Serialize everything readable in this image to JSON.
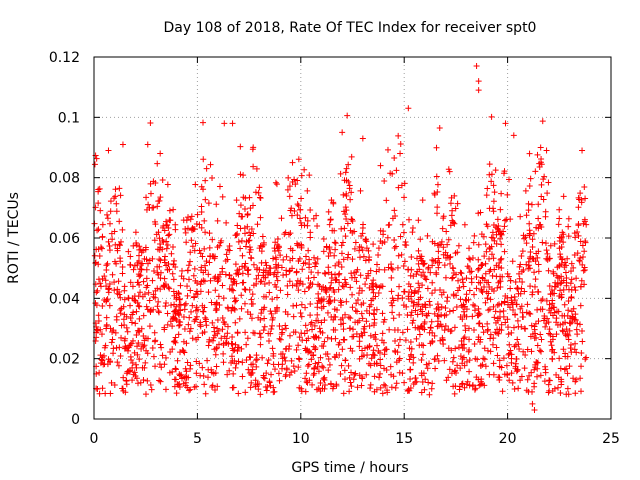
{
  "chart_data": {
    "type": "scatter",
    "title": "Day 108 of 2018, Rate Of TEC Index for receiver spt0",
    "xlabel": "GPS time / hours",
    "ylabel": "ROTI / TECUs",
    "xlim": [
      0,
      25
    ],
    "ylim": [
      0,
      0.12
    ],
    "xticks": [
      0,
      5,
      10,
      15,
      20,
      25
    ],
    "yticks": [
      0,
      0.02,
      0.04,
      0.06,
      0.08,
      0.1,
      0.12
    ],
    "ytick_labels": [
      "0",
      "0.02",
      "0.04",
      "0.06",
      "0.08",
      "0.1",
      "0.12"
    ],
    "grid": true,
    "marker": "+",
    "series_color": "#ff0000",
    "grid_color": "#a0a0a0",
    "series": [
      {
        "name": "ROTI",
        "x_range": [
          0,
          23.8
        ],
        "typical_min": 0.008,
        "typical_max": 0.065,
        "notable_points": [
          {
            "x": 18.5,
            "y": 0.117
          },
          {
            "x": 18.6,
            "y": 0.112
          },
          {
            "x": 18.6,
            "y": 0.109
          },
          {
            "x": 15.2,
            "y": 0.103
          },
          {
            "x": 19.9,
            "y": 0.098
          },
          {
            "x": 6.3,
            "y": 0.098
          },
          {
            "x": 6.7,
            "y": 0.098
          },
          {
            "x": 12.0,
            "y": 0.095
          },
          {
            "x": 20.3,
            "y": 0.094
          },
          {
            "x": 13.0,
            "y": 0.093
          },
          {
            "x": 1.4,
            "y": 0.091
          },
          {
            "x": 2.6,
            "y": 0.091
          },
          {
            "x": 21.6,
            "y": 0.09
          },
          {
            "x": 23.6,
            "y": 0.089
          },
          {
            "x": 0.7,
            "y": 0.089
          },
          {
            "x": 14.8,
            "y": 0.088
          },
          {
            "x": 3.2,
            "y": 0.088
          },
          {
            "x": 9.6,
            "y": 0.085
          },
          {
            "x": 17.2,
            "y": 0.082
          },
          {
            "x": 21.3,
            "y": 0.003
          },
          {
            "x": 21.2,
            "y": 0.005
          }
        ]
      }
    ]
  }
}
